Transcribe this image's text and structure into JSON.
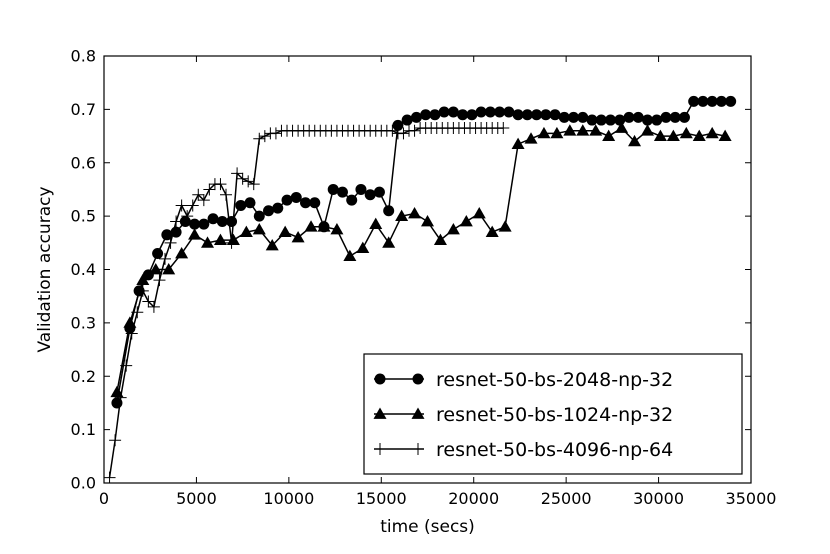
{
  "chart_data": {
    "type": "line",
    "xlabel": "time (secs)",
    "ylabel": "Validation accuracy",
    "xlim": [
      0,
      35000
    ],
    "ylim": [
      0.0,
      0.8
    ],
    "xticks": [
      0,
      5000,
      10000,
      15000,
      20000,
      25000,
      30000,
      35000
    ],
    "xtick_labels": [
      "0",
      "5000",
      "10000",
      "15000",
      "20000",
      "25000",
      "30000",
      "35000"
    ],
    "yticks": [
      0.0,
      0.1,
      0.2,
      0.3,
      0.4,
      0.5,
      0.6,
      0.7,
      0.8
    ],
    "ytick_labels": [
      "0.0",
      "0.1",
      "0.2",
      "0.3",
      "0.4",
      "0.5",
      "0.6",
      "0.7",
      "0.8"
    ],
    "grid": false,
    "legend_position": "lower-right",
    "series": [
      {
        "name": "resnet-50-bs-2048-np-32",
        "marker": "circle",
        "color": "#000000",
        "x": [
          700,
          1400,
          1900,
          2400,
          2900,
          3400,
          3900,
          4400,
          4900,
          5400,
          5900,
          6400,
          6900,
          7400,
          7900,
          8400,
          8900,
          9400,
          9900,
          10400,
          10900,
          11400,
          11900,
          12400,
          12900,
          13400,
          13900,
          14400,
          14900,
          15400,
          15900,
          16400,
          16900,
          17400,
          17900,
          18400,
          18900,
          19400,
          19900,
          20400,
          20900,
          21400,
          21900,
          22400,
          22900,
          23400,
          23900,
          24400,
          24900,
          25400,
          25900,
          26400,
          26900,
          27400,
          27900,
          28400,
          28900,
          29400,
          29900,
          30400,
          30900,
          31400,
          31900,
          32400,
          32900,
          33400,
          33900
        ],
        "y": [
          0.15,
          0.29,
          0.36,
          0.39,
          0.43,
          0.465,
          0.47,
          0.49,
          0.485,
          0.485,
          0.495,
          0.49,
          0.49,
          0.52,
          0.525,
          0.5,
          0.51,
          0.515,
          0.53,
          0.535,
          0.525,
          0.525,
          0.48,
          0.55,
          0.545,
          0.53,
          0.55,
          0.54,
          0.545,
          0.51,
          0.67,
          0.68,
          0.685,
          0.69,
          0.69,
          0.695,
          0.695,
          0.69,
          0.69,
          0.695,
          0.695,
          0.695,
          0.695,
          0.69,
          0.69,
          0.69,
          0.69,
          0.69,
          0.685,
          0.685,
          0.685,
          0.68,
          0.68,
          0.68,
          0.68,
          0.685,
          0.685,
          0.68,
          0.68,
          0.685,
          0.685,
          0.685,
          0.715,
          0.715,
          0.715,
          0.715,
          0.715
        ]
      },
      {
        "name": "resnet-50-bs-1024-np-32",
        "marker": "triangle",
        "color": "#000000",
        "x": [
          700,
          1400,
          2100,
          2800,
          3500,
          4200,
          4900,
          5600,
          6300,
          7000,
          7700,
          8400,
          9100,
          9800,
          10500,
          11200,
          11900,
          12600,
          13300,
          14000,
          14700,
          15400,
          16100,
          16800,
          17500,
          18200,
          18900,
          19600,
          20300,
          21000,
          21700,
          22400,
          23100,
          23800,
          24500,
          25200,
          25900,
          26600,
          27300,
          28000,
          28700,
          29400,
          30100,
          30800,
          31500,
          32200,
          32900,
          33600
        ],
        "y": [
          0.17,
          0.3,
          0.38,
          0.4,
          0.4,
          0.43,
          0.465,
          0.45,
          0.455,
          0.455,
          0.47,
          0.475,
          0.445,
          0.47,
          0.46,
          0.48,
          0.48,
          0.475,
          0.425,
          0.44,
          0.485,
          0.45,
          0.5,
          0.505,
          0.49,
          0.455,
          0.475,
          0.49,
          0.505,
          0.47,
          0.48,
          0.635,
          0.645,
          0.655,
          0.655,
          0.66,
          0.66,
          0.66,
          0.65,
          0.665,
          0.64,
          0.66,
          0.65,
          0.65,
          0.655,
          0.65,
          0.655,
          0.65
        ]
      },
      {
        "name": "resnet-50-bs-4096-np-64",
        "marker": "plus",
        "color": "#000000",
        "x": [
          300,
          600,
          900,
          1200,
          1500,
          1800,
          2100,
          2400,
          2700,
          3000,
          3300,
          3600,
          3900,
          4200,
          4500,
          4800,
          5100,
          5400,
          5700,
          6000,
          6300,
          6600,
          6900,
          7200,
          7500,
          7800,
          8100,
          8400,
          8700,
          9000,
          9300,
          9600,
          9900,
          10200,
          10500,
          10800,
          11100,
          11400,
          11700,
          12000,
          12300,
          12600,
          12900,
          13200,
          13500,
          13800,
          14100,
          14400,
          14700,
          15000,
          15300,
          15600,
          15900,
          16200,
          16500,
          16800,
          17100,
          17400,
          17700,
          18000,
          18300,
          18600,
          18900,
          19200,
          19500,
          19800,
          20100,
          20400,
          20700,
          21000,
          21300,
          21600
        ],
        "y": [
          0.01,
          0.08,
          0.16,
          0.22,
          0.28,
          0.32,
          0.36,
          0.34,
          0.33,
          0.38,
          0.42,
          0.45,
          0.49,
          0.52,
          0.5,
          0.52,
          0.54,
          0.53,
          0.55,
          0.56,
          0.56,
          0.54,
          0.45,
          0.58,
          0.57,
          0.565,
          0.56,
          0.645,
          0.65,
          0.655,
          0.655,
          0.66,
          0.66,
          0.66,
          0.66,
          0.66,
          0.66,
          0.66,
          0.66,
          0.66,
          0.66,
          0.66,
          0.66,
          0.66,
          0.66,
          0.66,
          0.66,
          0.66,
          0.66,
          0.66,
          0.66,
          0.66,
          0.655,
          0.655,
          0.66,
          0.66,
          0.665,
          0.665,
          0.665,
          0.665,
          0.665,
          0.665,
          0.665,
          0.665,
          0.665,
          0.665,
          0.665,
          0.665,
          0.665,
          0.665,
          0.665,
          0.665
        ]
      }
    ]
  }
}
